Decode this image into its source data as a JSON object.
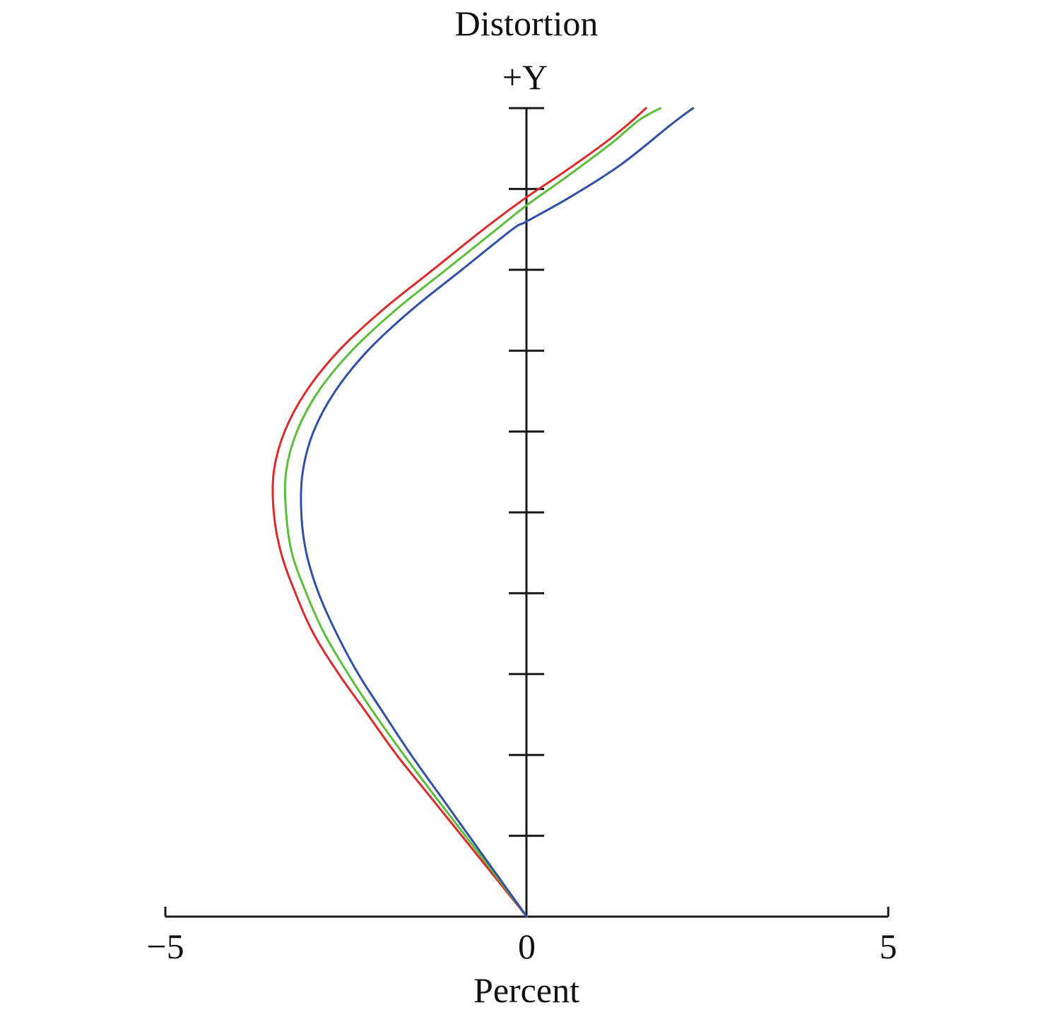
{
  "chart_data": {
    "type": "line",
    "title": "Distortion",
    "xlabel": "Percent",
    "ylabel": "+Y",
    "xlim": [
      -5,
      5
    ],
    "ylim": [
      0,
      1
    ],
    "x_ticks": [
      -5,
      0,
      5
    ],
    "x_tick_labels": [
      "−5",
      "0",
      "5"
    ],
    "y_ticks": [
      0.1,
      0.2,
      0.3,
      0.4,
      0.5,
      0.6,
      0.7,
      0.8,
      0.9,
      1.0
    ],
    "grid": false,
    "legend": "none",
    "series": [
      {
        "color": "#dd2a2a",
        "points": [
          [
            0,
            0
          ],
          [
            -0.45,
            0.05
          ],
          [
            -0.9,
            0.1
          ],
          [
            -1.35,
            0.15
          ],
          [
            -1.8,
            0.2
          ],
          [
            -2.2,
            0.25
          ],
          [
            -2.6,
            0.3
          ],
          [
            -2.95,
            0.35
          ],
          [
            -3.2,
            0.4
          ],
          [
            -3.4,
            0.45
          ],
          [
            -3.5,
            0.5
          ],
          [
            -3.5,
            0.55
          ],
          [
            -3.35,
            0.6
          ],
          [
            -3.05,
            0.65
          ],
          [
            -2.6,
            0.7
          ],
          [
            -2.0,
            0.75
          ],
          [
            -1.3,
            0.8
          ],
          [
            -0.6,
            0.85
          ],
          [
            0.0,
            0.89
          ],
          [
            0.5,
            0.92
          ],
          [
            1.05,
            0.955
          ],
          [
            1.4,
            0.98
          ],
          [
            1.65,
            1.0
          ]
        ]
      },
      {
        "color": "#5cbf3a",
        "points": [
          [
            0,
            0
          ],
          [
            -0.42,
            0.05
          ],
          [
            -0.85,
            0.1
          ],
          [
            -1.28,
            0.15
          ],
          [
            -1.7,
            0.2
          ],
          [
            -2.1,
            0.25
          ],
          [
            -2.47,
            0.3
          ],
          [
            -2.8,
            0.35
          ],
          [
            -3.05,
            0.4
          ],
          [
            -3.25,
            0.45
          ],
          [
            -3.33,
            0.5
          ],
          [
            -3.33,
            0.55
          ],
          [
            -3.18,
            0.6
          ],
          [
            -2.88,
            0.65
          ],
          [
            -2.42,
            0.7
          ],
          [
            -1.82,
            0.75
          ],
          [
            -1.12,
            0.8
          ],
          [
            -0.42,
            0.85
          ],
          [
            0.0,
            0.88
          ],
          [
            0.55,
            0.915
          ],
          [
            1.15,
            0.955
          ],
          [
            1.55,
            0.985
          ],
          [
            1.85,
            1.0
          ]
        ]
      },
      {
        "color": "#2f4fa8",
        "points": [
          [
            0,
            0
          ],
          [
            -0.4,
            0.05
          ],
          [
            -0.8,
            0.1
          ],
          [
            -1.2,
            0.15
          ],
          [
            -1.6,
            0.2
          ],
          [
            -1.97,
            0.25
          ],
          [
            -2.33,
            0.3
          ],
          [
            -2.63,
            0.35
          ],
          [
            -2.88,
            0.4
          ],
          [
            -3.05,
            0.45
          ],
          [
            -3.12,
            0.5
          ],
          [
            -3.1,
            0.55
          ],
          [
            -2.95,
            0.6
          ],
          [
            -2.65,
            0.65
          ],
          [
            -2.2,
            0.7
          ],
          [
            -1.6,
            0.75
          ],
          [
            -0.9,
            0.8
          ],
          [
            -0.2,
            0.85
          ],
          [
            0.0,
            0.86
          ],
          [
            0.6,
            0.89
          ],
          [
            1.3,
            0.93
          ],
          [
            2.0,
            0.98
          ],
          [
            2.3,
            1.0
          ]
        ]
      }
    ]
  }
}
